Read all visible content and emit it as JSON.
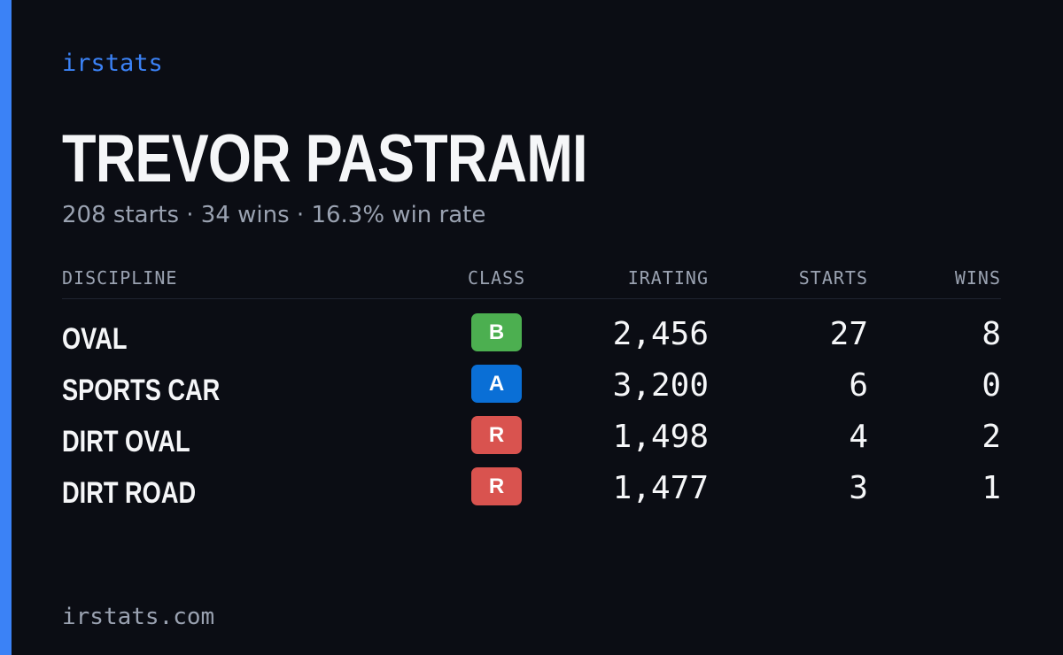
{
  "brand": "irstats",
  "player": {
    "name": "TREVOR PASTRAMI",
    "summary": "208 starts · 34 wins · 16.3% win rate"
  },
  "table": {
    "headers": {
      "discipline": "DISCIPLINE",
      "class": "CLASS",
      "irating": "IRATING",
      "starts": "STARTS",
      "wins": "WINS"
    },
    "rows": [
      {
        "discipline": "OVAL",
        "class": "B",
        "class_color": "#4caf50",
        "irating": "2,456",
        "starts": "27",
        "wins": "8"
      },
      {
        "discipline": "SPORTS CAR",
        "class": "A",
        "class_color": "#0a6fd6",
        "irating": "3,200",
        "starts": "6",
        "wins": "0"
      },
      {
        "discipline": "DIRT OVAL",
        "class": "R",
        "class_color": "#d9534f",
        "irating": "1,498",
        "starts": "4",
        "wins": "2"
      },
      {
        "discipline": "DIRT ROAD",
        "class": "R",
        "class_color": "#d9534f",
        "irating": "1,477",
        "starts": "3",
        "wins": "1"
      }
    ]
  },
  "footer": "irstats.com",
  "colors": {
    "accent": "#3b82f6",
    "background": "#0b0d14"
  }
}
